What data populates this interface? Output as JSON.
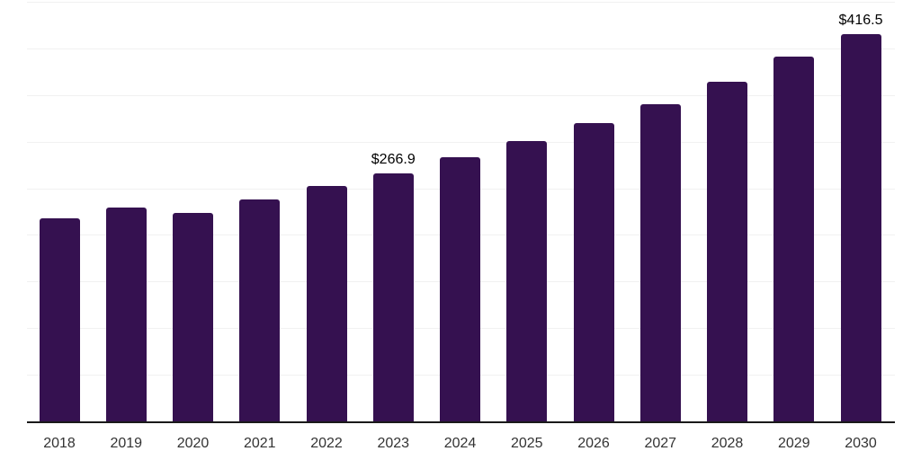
{
  "chart_data": {
    "type": "bar",
    "title": "",
    "xlabel": "",
    "ylabel": "",
    "categories": [
      "2018",
      "2019",
      "2020",
      "2021",
      "2022",
      "2023",
      "2024",
      "2025",
      "2026",
      "2027",
      "2028",
      "2029",
      "2030"
    ],
    "values": [
      218.7,
      230.3,
      225.0,
      239.0,
      253.4,
      266.9,
      284.7,
      301.6,
      320.9,
      341.1,
      365.2,
      392.2,
      416.5
    ],
    "value_labels": {
      "2023": "$266.9",
      "2030": "$416.5"
    },
    "ylim": [
      0,
      450
    ],
    "gridline_step": 50,
    "grid": "horizontal-only",
    "legend": "none",
    "colors": {
      "bar": "#351150",
      "gridline": "#f1f1f1",
      "axis_line": "#1a1a1a",
      "tick_label": "#333333",
      "value_label": "#000000"
    }
  }
}
